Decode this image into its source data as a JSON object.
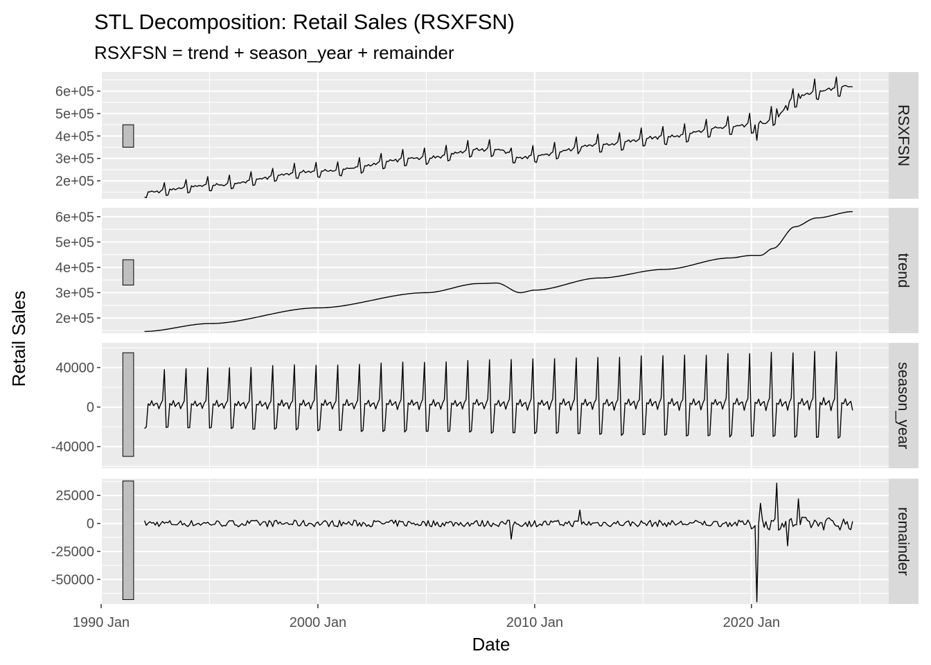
{
  "chart_data": {
    "type": "line",
    "title": "STL Decomposition: Retail Sales (RSXFSN)",
    "subtitle": "RSXFSN = trend + season_year + remainder",
    "xlabel": "Date",
    "ylabel": "Retail Sales",
    "x_ticks": [
      "1990 Jan",
      "2000 Jan",
      "2010 Jan",
      "2020 Jan"
    ],
    "x_range": [
      "1990-01",
      "2026-05"
    ],
    "series_start": "1992-01",
    "series_end": "2024-09",
    "frequency": "monthly",
    "grid": true,
    "legend": "none",
    "panels": [
      {
        "name": "RSXFSN",
        "strip_label": "RSXFSN",
        "y_ticks": [
          "2e+05",
          "3e+05",
          "4e+05",
          "5e+05",
          "6e+05"
        ],
        "y_tick_values": [
          200000,
          300000,
          400000,
          500000,
          600000
        ],
        "ylim": [
          120000,
          685000
        ],
        "scale_bar": [
          350000,
          450000
        ],
        "trend_anchors": [
          [
            "1992-01",
            147000
          ],
          [
            "1995-01",
            178000
          ],
          [
            "2000-01",
            240000
          ],
          [
            "2005-01",
            300000
          ],
          [
            "2007-06",
            336000
          ],
          [
            "2008-04",
            338000
          ],
          [
            "2009-05",
            300000
          ],
          [
            "2010-01",
            310000
          ],
          [
            "2013-01",
            358000
          ],
          [
            "2016-01",
            392000
          ],
          [
            "2019-01",
            437000
          ],
          [
            "2020-01",
            447000
          ],
          [
            "2020-06",
            447000
          ],
          [
            "2021-01",
            475000
          ],
          [
            "2022-01",
            560000
          ],
          [
            "2023-01",
            595000
          ],
          [
            "2024-09",
            620000
          ]
        ],
        "seasonal_pattern": [
          -21000,
          -20000,
          3000,
          2000,
          6000,
          1000,
          3000,
          4000,
          -2000,
          3000,
          6000,
          38000
        ],
        "seasonal_growth": 1.5,
        "remainder_events": [
          [
            "2008-12",
            -14000
          ],
          [
            "2012-02",
            12000
          ],
          [
            "2020-04",
            -70000
          ],
          [
            "2020-06",
            18000
          ],
          [
            "2021-03",
            36000
          ],
          [
            "2021-09",
            -20000
          ],
          [
            "2022-03",
            22000
          ]
        ],
        "remainder_noise": 3000,
        "remainder_noise_late": 6000,
        "stroke": "#000000"
      },
      {
        "name": "trend",
        "strip_label": "trend",
        "y_ticks": [
          "2e+05",
          "3e+05",
          "4e+05",
          "5e+05",
          "6e+05"
        ],
        "y_tick_values": [
          200000,
          300000,
          400000,
          500000,
          600000
        ],
        "ylim": [
          140000,
          635000
        ],
        "scale_bar": [
          330000,
          430000
        ],
        "stroke": "#000000"
      },
      {
        "name": "season_year",
        "strip_label": "season_year",
        "y_ticks": [
          "-40000",
          "0",
          "40000"
        ],
        "y_tick_values": [
          -40000,
          0,
          40000
        ],
        "ylim": [
          -62000,
          65000
        ],
        "scale_bar": [
          -50000,
          55000
        ],
        "stroke": "#000000"
      },
      {
        "name": "remainder",
        "strip_label": "remainder",
        "y_ticks": [
          "-50000",
          "-25000",
          "0",
          "25000"
        ],
        "y_tick_values": [
          -50000,
          -25000,
          0,
          25000
        ],
        "ylim": [
          -72000,
          40000
        ],
        "scale_bar": [
          -68000,
          38000
        ],
        "stroke": "#000000"
      }
    ]
  },
  "colors": {
    "panel_background": "#ebebeb",
    "strip_background": "#d9d9d9",
    "grid": "#ffffff",
    "line": "#000000",
    "scale_bar_fill": "#bfbfbf"
  }
}
